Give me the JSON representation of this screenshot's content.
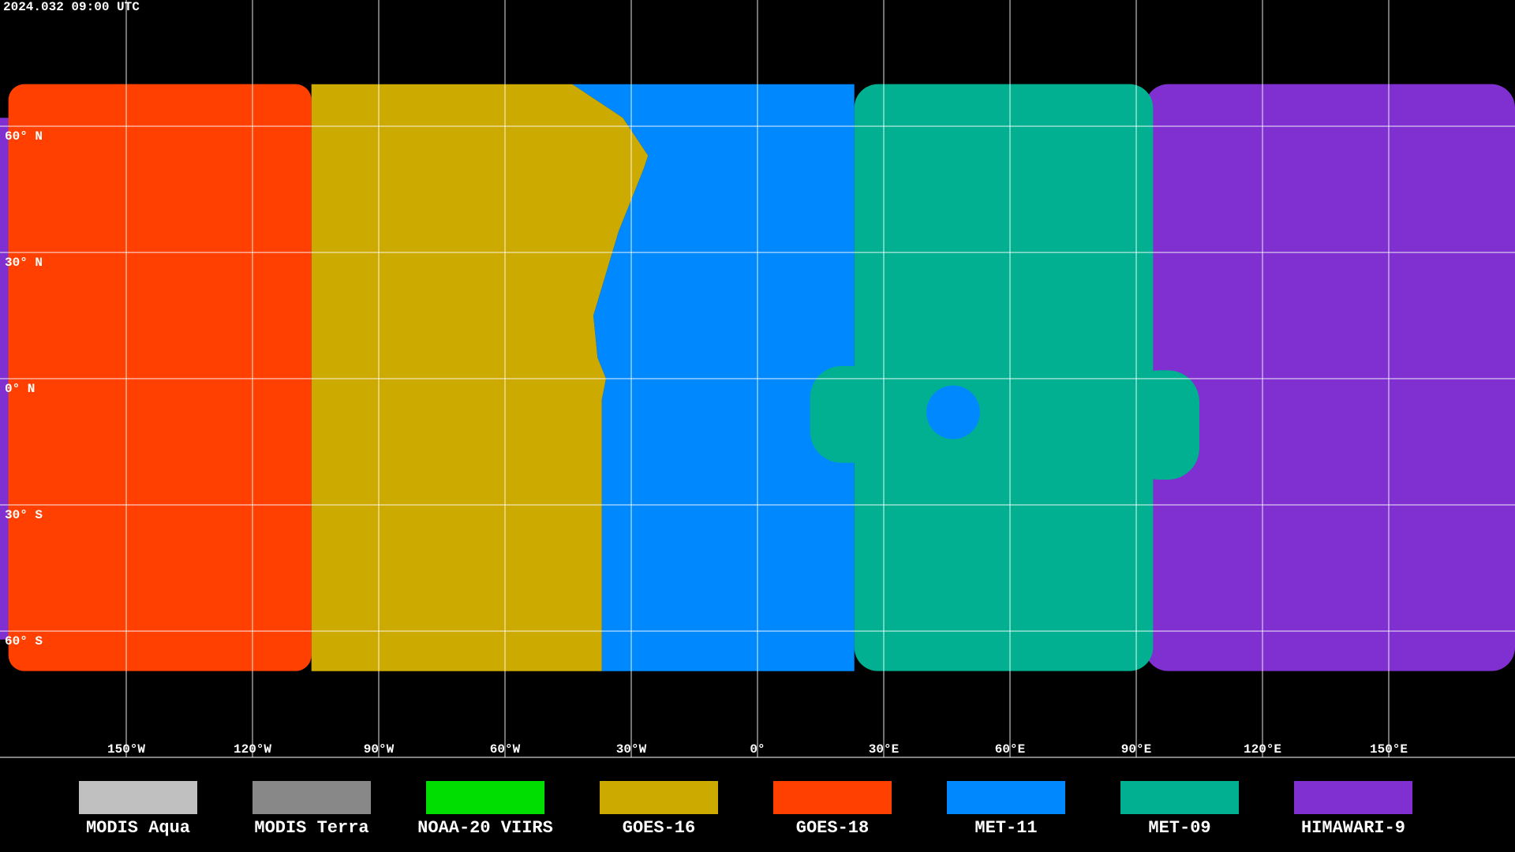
{
  "header": {
    "timestamp": "2024.032 09:00 UTC"
  },
  "map": {
    "lat_labels": [
      "60° N",
      "30° N",
      "0° N",
      "30° S",
      "60° S"
    ],
    "lon_labels": [
      "150°W",
      "120°W",
      "90°W",
      "60°W",
      "30°W",
      "0°",
      "30°E",
      "60°E",
      "90°E",
      "120°E",
      "150°E"
    ]
  },
  "legend": {
    "items": [
      {
        "label": "MODIS Aqua",
        "color": "#c0c0c0"
      },
      {
        "label": "MODIS Terra",
        "color": "#888888"
      },
      {
        "label": "NOAA-20 VIIRS",
        "color": "#00dd00"
      },
      {
        "label": "GOES-16",
        "color": "#ccaa00"
      },
      {
        "label": "GOES-18",
        "color": "#ff4000"
      },
      {
        "label": "MET-11",
        "color": "#0088ff"
      },
      {
        "label": "MET-09",
        "color": "#00b090"
      },
      {
        "label": "HIMAWARI-9",
        "color": "#8030d0"
      }
    ]
  }
}
